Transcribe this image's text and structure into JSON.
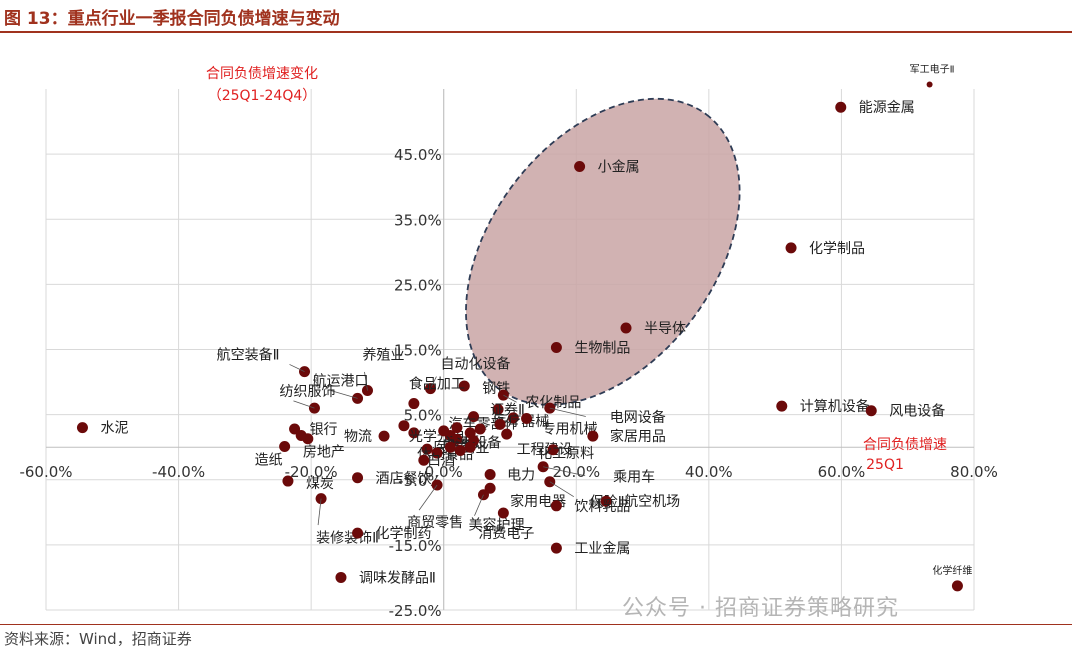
{
  "title": "图 13：重点行业一季报合同负债增速与变动",
  "source": "资料来源：Wind，招商证券",
  "watermark": "公众号 · 招商证券策略研究",
  "colors": {
    "accent": "#a0321e",
    "point": "#6b0a0a",
    "ellipse_fill": "#c9a5a5",
    "ellipse_stroke": "#2e3c55",
    "axis_note": "#e02020"
  },
  "chart_data": {
    "type": "scatter",
    "title": "重点行业一季报合同负债增速与变动",
    "xlabel": "合同负债增速25Q1",
    "ylabel": "合同负债增速变化（25Q1-24Q4）",
    "ylabel_lines": [
      "合同负债增速变化",
      "（25Q1-24Q4）"
    ],
    "xlabel_lines": [
      "合同负债增速",
      "25Q1"
    ],
    "xlim": [
      -0.6,
      0.8
    ],
    "ylim": [
      -0.25,
      0.55
    ],
    "xticks": [
      "-60.0%",
      "-40.0%",
      "-20.0%",
      "0.0%",
      "20.0%",
      "40.0%",
      "60.0%",
      "80.0%"
    ],
    "yticks": [
      "-25.0%",
      "-15.0%",
      "-5.0%",
      "5.0%",
      "15.0%",
      "25.0%",
      "35.0%",
      "45.0%"
    ],
    "grid": true,
    "points": [
      {
        "name": "军工电子Ⅱ",
        "x": 0.733,
        "y": 0.557
      },
      {
        "name": "能源金属",
        "x": 0.599,
        "y": 0.522
      },
      {
        "name": "小金属",
        "x": 0.205,
        "y": 0.431
      },
      {
        "name": "化学制品",
        "x": 0.524,
        "y": 0.306
      },
      {
        "name": "半导体",
        "x": 0.275,
        "y": 0.183
      },
      {
        "name": "生物制品",
        "x": 0.17,
        "y": 0.153
      },
      {
        "name": "航空装备Ⅱ",
        "x": -0.21,
        "y": 0.116
      },
      {
        "name": "养殖业",
        "x": -0.115,
        "y": 0.087
      },
      {
        "name": "自动化设备",
        "x": -0.02,
        "y": 0.09
      },
      {
        "name": "钢铁",
        "x": 0.031,
        "y": 0.094
      },
      {
        "name": "农化制品",
        "x": 0.09,
        "y": 0.08
      },
      {
        "name": "航运港口",
        "x": -0.13,
        "y": 0.075
      },
      {
        "name": "食品加工",
        "x": -0.045,
        "y": 0.067
      },
      {
        "name": "证券Ⅱ",
        "x": 0.082,
        "y": 0.058
      },
      {
        "name": "计算机设备",
        "x": 0.51,
        "y": 0.063
      },
      {
        "name": "风电设备",
        "x": 0.645,
        "y": 0.056
      },
      {
        "name": "电网设备",
        "x": 0.16,
        "y": 0.06
      },
      {
        "name": "纺织服饰",
        "x": -0.195,
        "y": 0.06
      },
      {
        "name": "水泥",
        "x": -0.545,
        "y": 0.03
      },
      {
        "name": "银行",
        "x": -0.225,
        "y": 0.028
      },
      {
        "name": "汽车零部件",
        "x": 0.045,
        "y": 0.047
      },
      {
        "name": "医疗器械",
        "x": 0.105,
        "y": 0.045
      },
      {
        "name": "专用机械",
        "x": 0.125,
        "y": 0.044
      },
      {
        "name": "光学光电子",
        "x": -0.045,
        "y": 0.022
      },
      {
        "name": "家居用品",
        "x": 0.225,
        "y": 0.017
      },
      {
        "name": "物流",
        "x": -0.09,
        "y": 0.017
      },
      {
        "name": "通用设备",
        "x": 0.01,
        "y": 0.018
      },
      {
        "name": "工程建设",
        "x": 0.095,
        "y": 0.02
      },
      {
        "name": "房地产",
        "x": -0.205,
        "y": 0.013
      },
      {
        "name": "造纸",
        "x": -0.24,
        "y": 0.001
      },
      {
        "name": "电池",
        "x": 0.02,
        "y": 0.012
      },
      {
        "name": "医药商业",
        "x": 0.045,
        "y": 0.01
      },
      {
        "name": "化工原料",
        "x": 0.165,
        "y": -0.004
      },
      {
        "name": "休闲食品",
        "x": -0.025,
        "y": -0.003
      },
      {
        "name": "白酒",
        "x": -0.01,
        "y": -0.009
      },
      {
        "name": "煤炭",
        "x": -0.235,
        "y": -0.052
      },
      {
        "name": "酒店餐饮",
        "x": -0.13,
        "y": -0.047
      },
      {
        "name": "乘用车",
        "x": 0.15,
        "y": -0.03
      },
      {
        "name": "电力",
        "x": 0.07,
        "y": -0.042
      },
      {
        "name": "保险Ⅱ",
        "x": 0.16,
        "y": -0.053
      },
      {
        "name": "家用电器",
        "x": 0.07,
        "y": -0.063
      },
      {
        "name": "商贸零售",
        "x": -0.01,
        "y": -0.058
      },
      {
        "name": "美容护理",
        "x": 0.06,
        "y": -0.073
      },
      {
        "name": "航空机场",
        "x": 0.245,
        "y": -0.083
      },
      {
        "name": "装修装饰Ⅱ",
        "x": -0.185,
        "y": -0.079
      },
      {
        "name": "饮料乳品",
        "x": 0.17,
        "y": -0.09
      },
      {
        "name": "消费电子",
        "x": 0.09,
        "y": -0.101
      },
      {
        "name": "化学制药",
        "x": -0.13,
        "y": -0.132
      },
      {
        "name": "工业金属",
        "x": 0.17,
        "y": -0.155
      },
      {
        "name": "调味发酵品Ⅱ",
        "x": -0.155,
        "y": -0.2
      },
      {
        "name": "化学纤维",
        "x": 0.775,
        "y": -0.213
      },
      {
        "name": "",
        "x": 0.0,
        "y": 0.025
      },
      {
        "name": "",
        "x": 0.02,
        "y": 0.03
      },
      {
        "name": "",
        "x": 0.04,
        "y": 0.022
      },
      {
        "name": "",
        "x": 0.055,
        "y": 0.028
      },
      {
        "name": "",
        "x": -0.06,
        "y": 0.033
      },
      {
        "name": "",
        "x": -0.215,
        "y": 0.018
      },
      {
        "name": "",
        "x": -0.03,
        "y": -0.02
      },
      {
        "name": "",
        "x": 0.01,
        "y": 0.0
      },
      {
        "name": "",
        "x": 0.085,
        "y": 0.035
      },
      {
        "name": "",
        "x": 0.025,
        "y": -0.005
      },
      {
        "name": "",
        "x": 0.04,
        "y": 0.0
      }
    ]
  }
}
